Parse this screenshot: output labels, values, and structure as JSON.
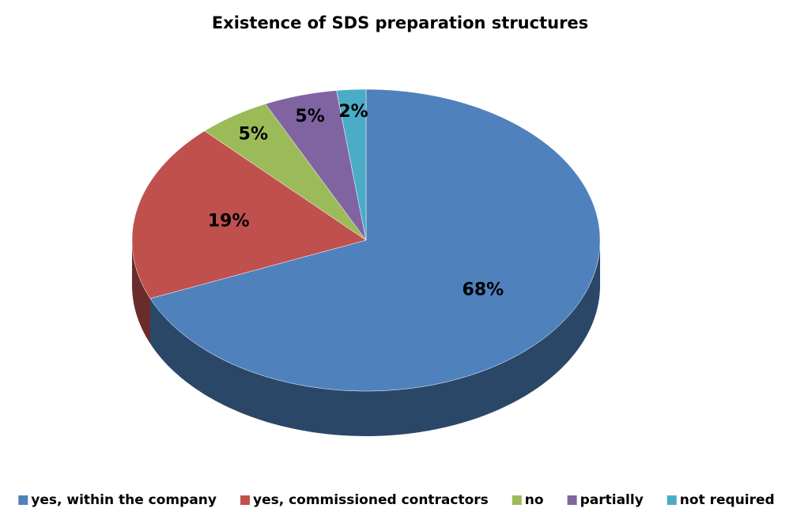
{
  "chart_data": {
    "type": "pie",
    "title": "Existence of SDS preparation structures",
    "categories": [
      "yes, within the company",
      "yes, commissioned contractors",
      "no",
      "partially",
      "not required"
    ],
    "values": [
      68,
      19,
      5,
      5,
      2
    ],
    "value_labels": [
      "68%",
      "19%",
      "5%",
      "5%",
      "2%"
    ],
    "colors": [
      "#4f81bd",
      "#c0504d",
      "#9bbb59",
      "#8064a2",
      "#4bacc6"
    ],
    "legend": "bottom"
  }
}
